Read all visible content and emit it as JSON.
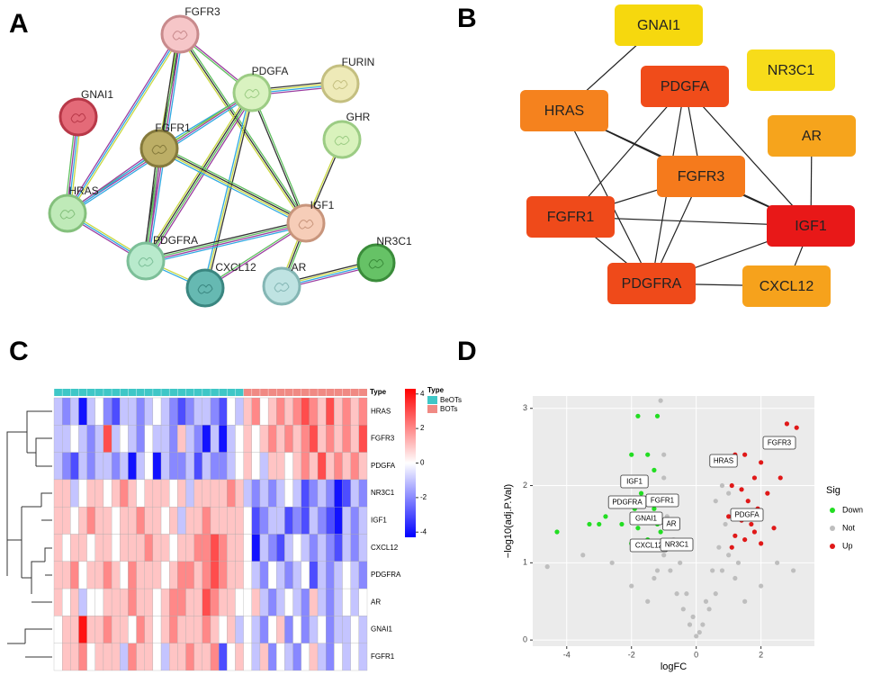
{
  "panel_labels": [
    "A",
    "B",
    "C",
    "D"
  ],
  "network_a": {
    "nodes": [
      {
        "label": "FGFR3",
        "color": "#f6c6c8",
        "stroke": "#c88a8c"
      },
      {
        "label": "PDGFA",
        "color": "#d9f2c0",
        "stroke": "#9ccc84"
      },
      {
        "label": "FURIN",
        "color": "#eeeab8",
        "stroke": "#c4bf80"
      },
      {
        "label": "GNAI1",
        "color": "#e46a78",
        "stroke": "#b83848"
      },
      {
        "label": "GHR",
        "color": "#d9f2bc",
        "stroke": "#9ccc84"
      },
      {
        "label": "FGFR1",
        "color": "#bcae66",
        "stroke": "#857a3c"
      },
      {
        "label": "HRAS",
        "color": "#bfeab8",
        "stroke": "#84c07c"
      },
      {
        "label": "IGF1",
        "color": "#f6cdb8",
        "stroke": "#c8957c"
      },
      {
        "label": "NR3C1",
        "color": "#66c266",
        "stroke": "#3a8c3a"
      },
      {
        "label": "PDGFRA",
        "color": "#b8eacc",
        "stroke": "#7cbf98"
      },
      {
        "label": "CXCL12",
        "color": "#66b9b2",
        "stroke": "#3a8680"
      },
      {
        "label": "AR",
        "color": "#bfe3e2",
        "stroke": "#84b6b4"
      }
    ],
    "edges": [
      [
        "FGFR3",
        "FGFR1"
      ],
      [
        "FGFR3",
        "HRAS"
      ],
      [
        "FGFR3",
        "PDGFRA"
      ],
      [
        "FGFR3",
        "PDGFA"
      ],
      [
        "FGFR3",
        "IGF1"
      ],
      [
        "PDGFA",
        "FURIN"
      ],
      [
        "PDGFA",
        "FGFR1"
      ],
      [
        "PDGFA",
        "HRAS"
      ],
      [
        "PDGFA",
        "PDGFRA"
      ],
      [
        "PDGFA",
        "IGF1"
      ],
      [
        "PDGFA",
        "CXCL12"
      ],
      [
        "GNAI1",
        "HRAS"
      ],
      [
        "FGFR1",
        "HRAS"
      ],
      [
        "FGFR1",
        "PDGFRA"
      ],
      [
        "FGFR1",
        "IGF1"
      ],
      [
        "GHR",
        "IGF1"
      ],
      [
        "HRAS",
        "PDGFRA"
      ],
      [
        "IGF1",
        "PDGFRA"
      ],
      [
        "IGF1",
        "CXCL12"
      ],
      [
        "IGF1",
        "AR"
      ],
      [
        "AR",
        "NR3C1"
      ],
      [
        "PDGFRA",
        "CXCL12"
      ]
    ]
  },
  "network_b": {
    "nodes": [
      {
        "label": "GNAI1",
        "color": "#f6d80e"
      },
      {
        "label": "NR3C1",
        "color": "#f7dc1a"
      },
      {
        "label": "PDGFA",
        "color": "#f04c1a"
      },
      {
        "label": "HRAS",
        "color": "#f5821e"
      },
      {
        "label": "AR",
        "color": "#f6a41c"
      },
      {
        "label": "FGFR3",
        "color": "#f57a1c"
      },
      {
        "label": "FGFR1",
        "color": "#ef4a1a"
      },
      {
        "label": "IGF1",
        "color": "#e81818"
      },
      {
        "label": "PDGFRA",
        "color": "#ef4a1a"
      },
      {
        "label": "CXCL12",
        "color": "#f6a21c"
      }
    ],
    "edges": [
      [
        "GNAI1",
        "HRAS"
      ],
      [
        "HRAS",
        "FGFR3"
      ],
      [
        "HRAS",
        "PDGFRA"
      ],
      [
        "HRAS",
        "IGF1"
      ],
      [
        "PDGFA",
        "FGFR1"
      ],
      [
        "PDGFA",
        "FGFR3"
      ],
      [
        "PDGFA",
        "PDGFRA"
      ],
      [
        "PDGFA",
        "IGF1"
      ],
      [
        "FGFR3",
        "FGFR1"
      ],
      [
        "FGFR3",
        "PDGFRA"
      ],
      [
        "FGFR3",
        "IGF1"
      ],
      [
        "FGFR1",
        "IGF1"
      ],
      [
        "FGFR1",
        "PDGFRA"
      ],
      [
        "IGF1",
        "PDGFRA"
      ],
      [
        "IGF1",
        "CXCL12"
      ],
      [
        "PDGFRA",
        "CXCL12"
      ],
      [
        "AR",
        "IGF1"
      ]
    ]
  },
  "chart_data": [
    {
      "type": "heatmap",
      "annotation_label": "Type",
      "legend_title": "Type",
      "groups": [
        {
          "name": "BeOTs",
          "color": "#3fc7c7",
          "count": 23
        },
        {
          "name": "BOTs",
          "color": "#f08a84",
          "count": 15
        }
      ],
      "rows": [
        "HRAS",
        "FGFR3",
        "PDGFA",
        "NR3C1",
        "IGF1",
        "CXCL12",
        "PDGFRA",
        "AR",
        "GNAI1",
        "FGFR1"
      ],
      "values": [
        [
          -1,
          -2,
          -1,
          -4,
          -1,
          0,
          -2,
          -3,
          -1,
          -1,
          -2,
          -1,
          0,
          -1,
          -2,
          -3,
          -2,
          -1,
          -1,
          -2,
          -3,
          0,
          -1,
          1,
          2,
          0,
          1,
          2,
          1,
          2,
          3,
          2,
          1,
          3,
          1,
          2,
          1,
          2
        ],
        [
          -1,
          -1,
          0,
          -1,
          -2,
          -1,
          3,
          -1,
          0,
          -1,
          -2,
          0,
          -1,
          -1,
          -2,
          1,
          -1,
          -2,
          -4,
          -1,
          -4,
          -1,
          0,
          1,
          0,
          1,
          2,
          1,
          2,
          1,
          2,
          3,
          1,
          2,
          1,
          2,
          1,
          3
        ],
        [
          -1,
          -2,
          -3,
          -1,
          -2,
          -1,
          -1,
          -2,
          -1,
          -4,
          -1,
          0,
          -4,
          -1,
          -2,
          -2,
          -1,
          -3,
          -1,
          -2,
          -2,
          -1,
          0,
          1,
          0,
          -1,
          1,
          1,
          0,
          1,
          2,
          1,
          3,
          1,
          2,
          1,
          2,
          1
        ],
        [
          1,
          1,
          -1,
          0,
          1,
          1,
          0,
          1,
          2,
          1,
          0,
          1,
          1,
          1,
          0,
          1,
          -1,
          1,
          1,
          1,
          1,
          2,
          1,
          -1,
          -2,
          -1,
          -2,
          -1,
          0,
          -1,
          -3,
          -2,
          -1,
          -2,
          -4,
          -3,
          -1,
          -2
        ],
        [
          1,
          1,
          0,
          1,
          2,
          1,
          1,
          0,
          1,
          1,
          2,
          1,
          1,
          0,
          1,
          -1,
          1,
          1,
          2,
          1,
          1,
          1,
          1,
          0,
          -3,
          -2,
          -1,
          -1,
          -3,
          -2,
          -3,
          -1,
          -2,
          -3,
          -4,
          -1,
          -2,
          -1
        ],
        [
          1,
          0,
          1,
          1,
          0,
          1,
          1,
          0,
          1,
          1,
          1,
          2,
          1,
          1,
          0,
          1,
          1,
          2,
          2,
          3,
          2,
          1,
          1,
          0,
          -4,
          -1,
          -2,
          -3,
          -1,
          0,
          -1,
          -2,
          -1,
          -2,
          -3,
          -1,
          -2,
          -1
        ],
        [
          1,
          1,
          2,
          0,
          1,
          1,
          2,
          1,
          0,
          2,
          1,
          1,
          1,
          0,
          1,
          2,
          2,
          1,
          2,
          3,
          2,
          1,
          1,
          0,
          -1,
          -2,
          0,
          -1,
          -2,
          -1,
          0,
          -3,
          -1,
          -2,
          -1,
          0,
          -1,
          -2
        ],
        [
          1,
          0,
          1,
          -1,
          0,
          0,
          1,
          1,
          1,
          2,
          1,
          1,
          0,
          1,
          2,
          2,
          1,
          1,
          3,
          2,
          1,
          1,
          0,
          0,
          1,
          -1,
          -2,
          -1,
          0,
          -1,
          -2,
          1,
          -1,
          -2,
          -1,
          0,
          -1,
          0
        ],
        [
          0,
          1,
          1,
          4,
          1,
          1,
          2,
          1,
          1,
          0,
          2,
          1,
          0,
          1,
          2,
          1,
          1,
          1,
          2,
          1,
          0,
          1,
          -1,
          0,
          -1,
          -2,
          0,
          1,
          -2,
          0,
          -2,
          -1,
          0,
          -2,
          -1,
          -1,
          0,
          -1
        ],
        [
          0,
          1,
          1,
          2,
          0,
          1,
          1,
          1,
          -1,
          2,
          1,
          1,
          0,
          -1,
          1,
          1,
          2,
          1,
          1,
          2,
          -3,
          0,
          1,
          0,
          -1,
          1,
          -2,
          0,
          -1,
          -2,
          0,
          1,
          -1,
          -2,
          0,
          -1,
          0,
          -1
        ]
      ],
      "zlim": [
        -4.3,
        4.3
      ],
      "colorbar_ticks": [
        4,
        2,
        0,
        -2,
        -4
      ],
      "colors": [
        "#0000ff",
        "#ffffff",
        "#ff0000"
      ]
    },
    {
      "type": "scatter",
      "xlabel": "logFC",
      "ylabel": "−log10(adj.P.Val)",
      "legend_title": "Sig",
      "xlim": [
        -5.05,
        3.65
      ],
      "ylim": [
        -0.08,
        3.16
      ],
      "xticks": [
        -4,
        -2,
        0,
        2
      ],
      "yticks": [
        0,
        1,
        2,
        3
      ],
      "grid": true,
      "series": [
        {
          "name": "Down",
          "color": "#22dd22",
          "x": [
            -1.8,
            -1.2,
            -1.5,
            -2,
            -1.3,
            -2.2,
            -1.7,
            -1.5,
            -1.9,
            -2.5,
            -1.4,
            -1.6,
            -1.2,
            -1.8,
            -3,
            -3.3,
            -2.8,
            -4.3,
            -1.5,
            -1.4,
            -2,
            -1.1,
            -1.3,
            -1.7,
            -2.3
          ],
          "y": [
            2.9,
            2.9,
            2.4,
            2.4,
            2.2,
            2.1,
            2,
            1.8,
            1.7,
            1.75,
            1.6,
            1.55,
            1.5,
            1.45,
            1.5,
            1.5,
            1.6,
            1.4,
            1.3,
            1.2,
            1.25,
            1.4,
            1.7,
            1.9,
            1.5
          ]
        },
        {
          "name": "Not",
          "color": "#bebebe",
          "x": [
            -1.1,
            0,
            0.2,
            -0.2,
            0.4,
            -0.4,
            0.6,
            -0.6,
            0.8,
            -0.8,
            1,
            -1,
            0.7,
            -0.7,
            0.9,
            -0.9,
            -1,
            -1,
            0.8,
            0.3,
            -0.3,
            0.5,
            -0.5,
            1.2,
            -1.3,
            2,
            -2,
            2.5,
            -2.6,
            1.5,
            -1.5,
            3,
            -3.5,
            -4.6,
            0.1,
            -0.1,
            1.3,
            -1.2,
            0.6,
            1
          ],
          "y": [
            3.1,
            0.05,
            0.2,
            0.2,
            0.4,
            0.4,
            0.6,
            0.6,
            0.9,
            0.9,
            1.1,
            1.1,
            1.2,
            1.3,
            1.5,
            1.6,
            2.1,
            2.4,
            2,
            0.5,
            0.6,
            0.9,
            1,
            0.8,
            0.8,
            0.7,
            0.7,
            1,
            1,
            0.5,
            0.5,
            0.9,
            1.1,
            0.95,
            0.1,
            0.3,
            1,
            0.9,
            1.8,
            1.9
          ]
        },
        {
          "name": "Up",
          "color": "#e01818",
          "x": [
            3.1,
            2.8,
            2.6,
            1.5,
            1.2,
            2,
            1.8,
            1.1,
            1.4,
            2.2,
            1.6,
            1.9,
            1.3,
            1,
            1.7,
            2.4,
            1.2,
            1.5,
            2,
            1.1,
            2.6,
            2.9,
            1.8,
            1.4
          ],
          "y": [
            2.75,
            2.8,
            2.6,
            2.4,
            2.4,
            2.3,
            2.1,
            2,
            1.95,
            1.9,
            1.8,
            1.7,
            1.65,
            1.6,
            1.5,
            1.45,
            1.35,
            1.3,
            1.25,
            1.2,
            2.1,
            2.5,
            1.4,
            1.55
          ]
        }
      ],
      "point_labels": [
        "IGF1",
        "PDGFRA",
        "FGFR1",
        "GNAI1",
        "AR",
        "CXCL12",
        "NR3C1",
        "HRAS",
        "PDGFA",
        "FGFR3"
      ]
    }
  ]
}
